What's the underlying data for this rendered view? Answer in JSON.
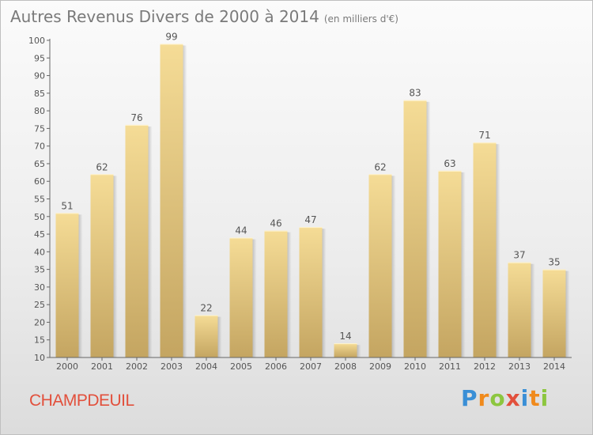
{
  "header": {
    "title": "Autres Revenus Divers de 2000 à 2014",
    "unit": "(en milliers d'€)"
  },
  "footer": {
    "place": "CHAMPDEUIL",
    "logo": [
      {
        "ch": "P",
        "color": "#3a8fd6"
      },
      {
        "ch": "r",
        "color": "#f08a1c"
      },
      {
        "ch": "o",
        "color": "#8cc63f"
      },
      {
        "ch": "x",
        "color": "#e2503c"
      },
      {
        "ch": "i",
        "color": "#3a8fd6"
      },
      {
        "ch": "t",
        "color": "#f08a1c"
      },
      {
        "ch": "i",
        "color": "#8cc63f"
      }
    ]
  },
  "colors": {
    "bar_top": "#f5dc96",
    "bar_bottom": "#c4a561",
    "text": "#555555",
    "grid": "#d9d9d9"
  },
  "chart_data": {
    "type": "bar",
    "title": "Autres Revenus Divers de 2000 à 2014",
    "subtitle": "(en milliers d'€)",
    "categories": [
      "2000",
      "2001",
      "2002",
      "2003",
      "2004",
      "2005",
      "2006",
      "2007",
      "2008",
      "2009",
      "2010",
      "2011",
      "2012",
      "2013",
      "2014"
    ],
    "values": [
      51,
      62,
      76,
      99,
      22,
      44,
      46,
      47,
      14,
      62,
      83,
      63,
      71,
      37,
      35
    ],
    "ylim": [
      10,
      100
    ],
    "yticks": [
      10,
      15,
      20,
      25,
      30,
      35,
      40,
      45,
      50,
      55,
      60,
      65,
      70,
      75,
      80,
      85,
      90,
      95,
      100
    ],
    "data_labels": true,
    "grid": false,
    "legend": "none"
  }
}
